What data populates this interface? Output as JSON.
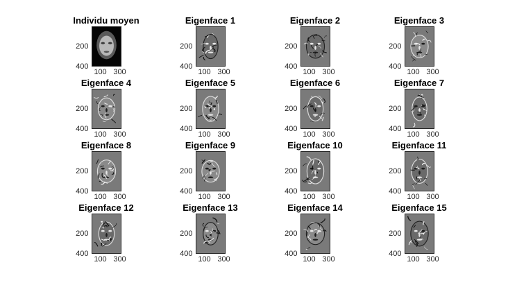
{
  "chart_data": {
    "type": "image-grid",
    "layout": "4x4 grid of grayscale face images",
    "colormap": "gray",
    "ytick_labels": [
      "200",
      "400"
    ],
    "xtick_labels": [
      "100",
      "300"
    ],
    "panels": [
      {
        "title": "Individu moyen",
        "style": "mean"
      },
      {
        "title": "Eigenface 1",
        "style": "eigen"
      },
      {
        "title": "Eigenface 2",
        "style": "eigen"
      },
      {
        "title": "Eigenface 3",
        "style": "eigen"
      },
      {
        "title": "Eigenface 4",
        "style": "eigen"
      },
      {
        "title": "Eigenface 5",
        "style": "eigen"
      },
      {
        "title": "Eigenface 6",
        "style": "eigen"
      },
      {
        "title": "Eigenface 7",
        "style": "eigen"
      },
      {
        "title": "Eigenface 8",
        "style": "eigen"
      },
      {
        "title": "Eigenface 9",
        "style": "eigen"
      },
      {
        "title": "Eigenface 10",
        "style": "eigen"
      },
      {
        "title": "Eigenface 11",
        "style": "eigen"
      },
      {
        "title": "Eigenface 12",
        "style": "eigen"
      },
      {
        "title": "Eigenface 13",
        "style": "eigen"
      },
      {
        "title": "Eigenface 14",
        "style": "eigen"
      },
      {
        "title": "Eigenface 15",
        "style": "eigen"
      }
    ]
  }
}
